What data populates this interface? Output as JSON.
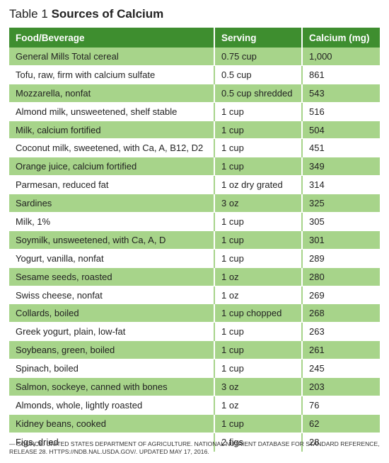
{
  "table": {
    "label": "Table 1",
    "name": "Sources of Calcium",
    "headers": [
      "Food/Beverage",
      "Serving",
      "Calcium (mg)"
    ],
    "rows": [
      [
        "General Mills Total cereal",
        "0.75 cup",
        "1,000"
      ],
      [
        "Tofu, raw, firm with calcium sulfate",
        "0.5 cup",
        "861"
      ],
      [
        "Mozzarella, nonfat",
        "0.5 cup shredded",
        "543"
      ],
      [
        "Almond milk, unsweetened, shelf stable",
        "1 cup",
        "516"
      ],
      [
        "Milk, calcium fortified",
        "1 cup",
        "504"
      ],
      [
        "Coconut milk, sweetened, with Ca, A, B12, D2",
        "1 cup",
        "451"
      ],
      [
        "Orange juice, calcium fortified",
        "1 cup",
        "349"
      ],
      [
        "Parmesan, reduced fat",
        "1 oz dry grated",
        "314"
      ],
      [
        "Sardines",
        "3 oz",
        "325"
      ],
      [
        "Milk, 1%",
        "1 cup",
        "305"
      ],
      [
        "Soymilk, unsweetened, with Ca, A, D",
        "1 cup",
        "301"
      ],
      [
        "Yogurt, vanilla, nonfat",
        "1 cup",
        "289"
      ],
      [
        "Sesame seeds, roasted",
        "1 oz",
        "280"
      ],
      [
        "Swiss cheese, nonfat",
        "1 oz",
        "269"
      ],
      [
        "Collards, boiled",
        "1 cup chopped",
        "268"
      ],
      [
        "Greek yogurt, plain, low-fat",
        "1 cup",
        "263"
      ],
      [
        "Soybeans, green, boiled",
        "1 cup",
        "261"
      ],
      [
        "Spinach, boiled",
        "1 cup",
        "245"
      ],
      [
        "Salmon, sockeye, canned with bones",
        "3 oz",
        "203"
      ],
      [
        "Almonds, whole, lightly roasted",
        "1 oz",
        "76"
      ],
      [
        "Kidney beans, cooked",
        "1 cup",
        "62"
      ],
      [
        "Figs, dried",
        "2 figs",
        "28"
      ]
    ],
    "source": "— Source: United States Department of Agriculture. National Nutrient Database for Standard Reference, Release 28. https://ndb.nal.usda.gov/. Updated May 17, 2016."
  },
  "colors": {
    "header": "#3e8e2f",
    "band": "#a7d48a"
  }
}
